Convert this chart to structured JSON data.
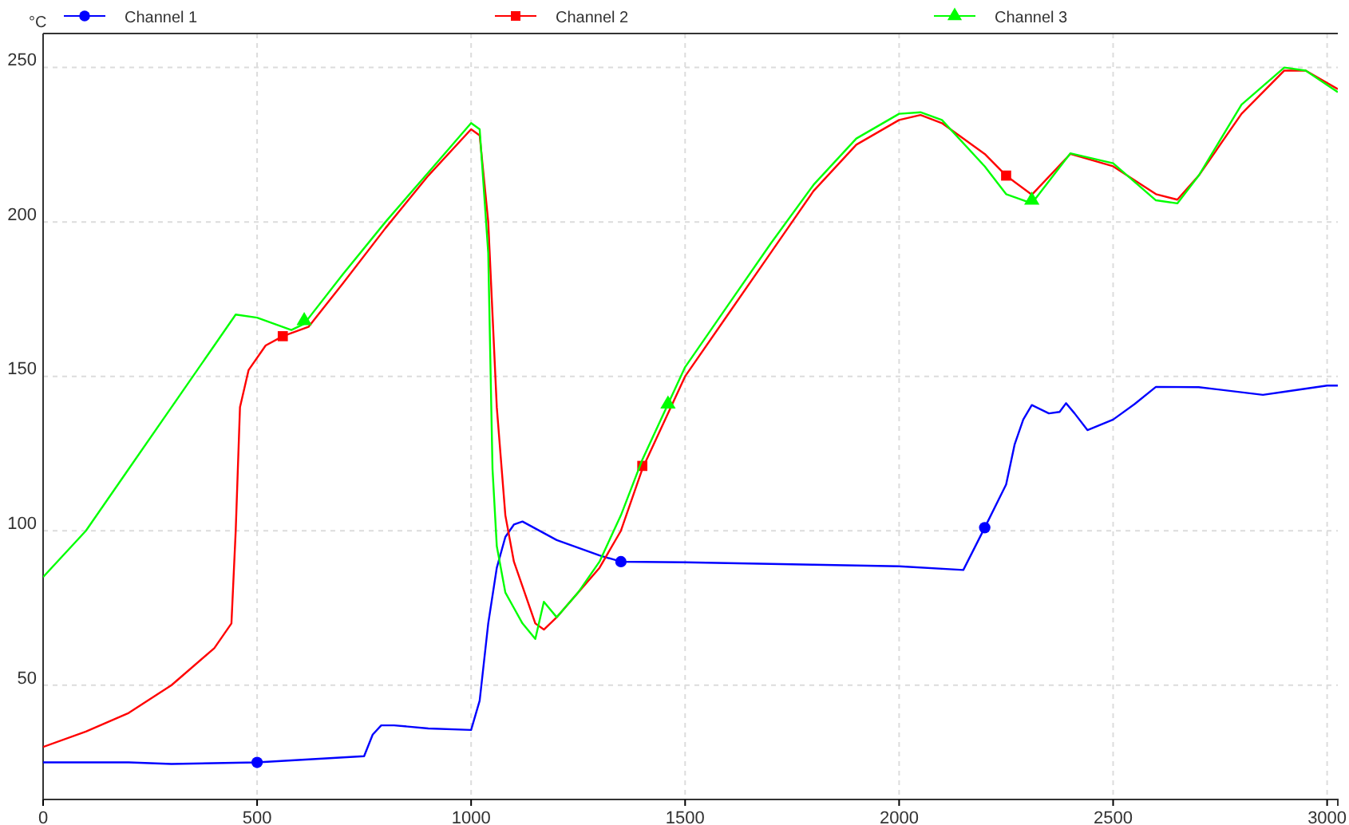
{
  "chart_data": {
    "type": "line",
    "ylabel": "°C",
    "xlim": [
      0,
      3025
    ],
    "ylim": [
      13,
      261
    ],
    "xticks": [
      0,
      500,
      1000,
      1500,
      2000,
      2500,
      3000
    ],
    "yticks": [
      50,
      100,
      150,
      200,
      250
    ],
    "grid": true,
    "legend": "top",
    "line_style": "solid",
    "series": [
      {
        "name": "Channel 1",
        "color": "#0000ff",
        "x": [
          0,
          200,
          300,
          500,
          750,
          770,
          790,
          820,
          900,
          1000,
          1020,
          1040,
          1060,
          1080,
          1100,
          1120,
          1200,
          1300,
          1350,
          1500,
          1800,
          2000,
          2150,
          2200,
          2250,
          2270,
          2290,
          2310,
          2350,
          2375,
          2390,
          2410,
          2440,
          2500,
          2550,
          2600,
          2700,
          2850,
          2900,
          3000,
          3025
        ],
        "values": [
          25,
          25,
          24.5,
          25,
          27,
          34,
          37,
          37,
          36,
          35.5,
          45,
          70,
          88,
          98,
          102,
          103,
          97,
          92,
          90,
          89.8,
          89,
          88.5,
          87.3,
          101,
          115,
          128,
          136,
          140.7,
          138,
          138.5,
          141.3,
          138,
          132.6,
          136,
          141,
          146.6,
          146.5,
          144,
          145,
          147,
          147
        ]
      },
      {
        "type": "scatter",
        "color": "#0000ff",
        "marker": "circle",
        "x": [
          500,
          1350,
          2200
        ],
        "values": [
          25,
          90,
          101
        ]
      },
      {
        "name": "Channel 2",
        "color": "#ff0000",
        "x": [
          0,
          100,
          200,
          300,
          400,
          440,
          450,
          460,
          480,
          520,
          560,
          620,
          700,
          800,
          900,
          1000,
          1020,
          1040,
          1060,
          1080,
          1100,
          1150,
          1170,
          1200,
          1250,
          1300,
          1350,
          1400,
          1500,
          1600,
          1700,
          1800,
          1900,
          2000,
          2050,
          2100,
          2200,
          2250,
          2310,
          2400,
          2500,
          2600,
          2650,
          2700,
          2800,
          2900,
          2950,
          3025
        ],
        "values": [
          30,
          35,
          41,
          50,
          62,
          70,
          100,
          140,
          152,
          160,
          163,
          166,
          180,
          198,
          215,
          230,
          228,
          200,
          140,
          105,
          90,
          70,
          68,
          72,
          80,
          88,
          100,
          120,
          150,
          170,
          190,
          210,
          225,
          233,
          234.6,
          232,
          222,
          215,
          208.8,
          222,
          218,
          209,
          207.2,
          215,
          235,
          249,
          249,
          243
        ]
      },
      {
        "type": "scatter",
        "color": "#ff0000",
        "marker": "square",
        "x": [
          560,
          1400,
          2250
        ],
        "values": [
          163,
          121,
          215
        ]
      },
      {
        "name": "Channel 3",
        "color": "#00ff00",
        "x": [
          0,
          100,
          200,
          300,
          400,
          450,
          500,
          580,
          610,
          700,
          800,
          900,
          1000,
          1020,
          1040,
          1050,
          1060,
          1080,
          1100,
          1120,
          1150,
          1170,
          1200,
          1250,
          1300,
          1350,
          1400,
          1460,
          1500,
          1600,
          1700,
          1800,
          1900,
          2000,
          2050,
          2100,
          2200,
          2250,
          2310,
          2400,
          2500,
          2600,
          2650,
          2700,
          2800,
          2900,
          2950,
          3025
        ],
        "values": [
          85,
          100,
          120,
          140,
          160,
          170,
          169,
          165,
          167,
          183,
          200,
          216,
          232,
          230,
          190,
          120,
          95,
          80,
          75,
          70,
          65,
          77,
          72,
          80,
          90,
          105,
          123,
          141,
          153,
          173,
          193,
          212,
          227,
          235,
          235.5,
          233,
          218,
          209,
          206,
          222.2,
          219,
          207,
          206,
          215,
          238,
          250,
          249,
          242
        ]
      },
      {
        "type": "scatter",
        "color": "#00ff00",
        "marker": "triangle",
        "x": [
          610,
          1460,
          2310
        ],
        "values": [
          168,
          141,
          207
        ]
      }
    ]
  }
}
